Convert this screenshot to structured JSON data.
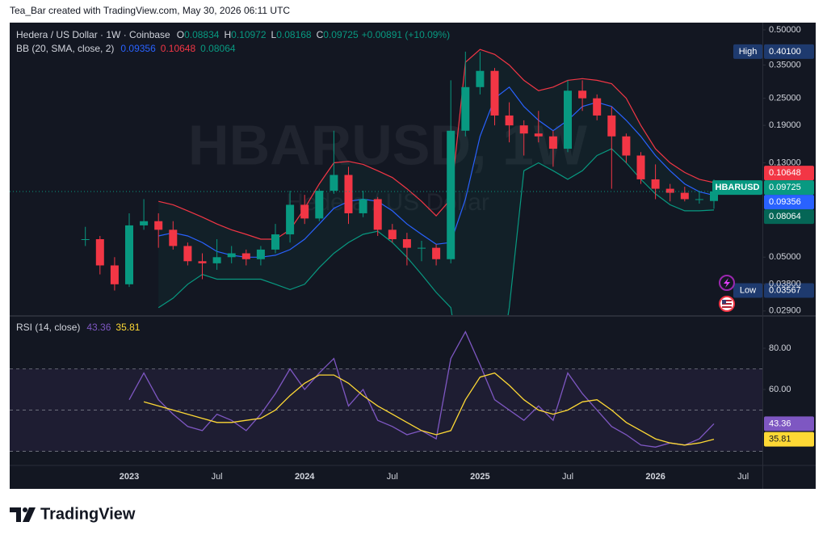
{
  "header": {
    "text": "Tea_Bar created with TradingView.com, May 30, 2026 06:11 UTC"
  },
  "footer": {
    "brand": "TradingView"
  },
  "chart_data": [
    {
      "type": "candlestick",
      "title": "Hedera / US Dollar · 1W · Coinbase",
      "watermark": "HBARUSD, 1W",
      "watermark_subtitle": "Hedera / US Dollar",
      "symbol": "HBARUSD",
      "ohlc_letters": [
        "O",
        "H",
        "L",
        "C"
      ],
      "change": "+0.00891 (+10.09%)",
      "up_color": "#089981",
      "down_color": "#f23645",
      "log_scale": true,
      "grid": false,
      "categories": [
        null,
        null,
        null,
        "2023",
        null,
        null,
        null,
        null,
        null,
        "Jul",
        null,
        null,
        null,
        null,
        null,
        "2024",
        null,
        null,
        null,
        null,
        null,
        "Jul",
        null,
        null,
        null,
        null,
        null,
        "2025",
        null,
        null,
        null,
        null,
        null,
        "Jul",
        null,
        null,
        null,
        null,
        null,
        "2026",
        null,
        null,
        null,
        null,
        null,
        "Jul"
      ],
      "open": [
        0.06,
        0.06,
        0.046,
        0.038,
        0.069,
        0.072,
        0.066,
        0.056,
        0.048,
        0.047,
        0.05,
        0.052,
        0.049,
        0.054,
        0.063,
        0.085,
        0.074,
        0.098,
        0.115,
        0.078,
        0.09,
        0.066,
        0.06,
        0.055,
        0.055,
        0.049,
        0.18,
        0.28,
        0.33,
        0.21,
        0.19,
        0.175,
        0.17,
        0.15,
        0.27,
        0.25,
        0.21,
        0.17,
        0.14,
        0.11,
        0.1,
        0.096,
        0.09,
        0.08834,
        null,
        null
      ],
      "high": [
        0.068,
        0.062,
        0.05,
        0.078,
        0.09,
        0.078,
        0.072,
        0.058,
        0.052,
        0.06,
        0.056,
        0.054,
        0.056,
        0.07,
        0.098,
        0.094,
        0.1,
        0.18,
        0.125,
        0.098,
        0.092,
        0.07,
        0.064,
        0.059,
        0.057,
        0.3,
        0.401,
        0.4,
        0.34,
        0.24,
        0.2,
        0.22,
        0.18,
        0.3,
        0.3,
        0.26,
        0.23,
        0.175,
        0.145,
        0.128,
        0.105,
        0.102,
        0.098,
        0.10972,
        null,
        null
      ],
      "low": [
        0.056,
        0.042,
        0.03567,
        0.037,
        0.066,
        0.055,
        0.054,
        0.046,
        0.04,
        0.044,
        0.047,
        0.046,
        0.046,
        0.052,
        0.058,
        0.07,
        0.072,
        0.095,
        0.07,
        0.075,
        0.062,
        0.058,
        0.046,
        0.048,
        0.046,
        0.047,
        0.17,
        0.26,
        0.19,
        0.16,
        0.14,
        0.16,
        0.125,
        0.145,
        0.22,
        0.2,
        0.1,
        0.13,
        0.105,
        0.09,
        0.088,
        0.088,
        0.086,
        0.08168,
        null,
        null
      ],
      "close": [
        0.06,
        0.046,
        0.038,
        0.069,
        0.072,
        0.066,
        0.056,
        0.048,
        0.047,
        0.05,
        0.052,
        0.049,
        0.054,
        0.063,
        0.085,
        0.074,
        0.098,
        0.115,
        0.078,
        0.09,
        0.066,
        0.06,
        0.055,
        0.055,
        0.049,
        0.18,
        0.28,
        0.33,
        0.21,
        0.19,
        0.175,
        0.17,
        0.15,
        0.27,
        0.25,
        0.21,
        0.17,
        0.14,
        0.11,
        0.1,
        0.096,
        0.09,
        0.09,
        0.09725,
        null,
        null
      ],
      "indicator": {
        "name": "BB (20, SMA, close, 2)",
        "fill": "rgba(8,153,129,0.07)",
        "series": [
          {
            "color": "#f23645",
            "values": [
              null,
              null,
              null,
              null,
              null,
              0.088,
              0.085,
              0.08,
              0.075,
              0.07,
              0.066,
              0.063,
              0.06,
              0.06,
              0.066,
              0.082,
              0.105,
              0.13,
              0.132,
              0.128,
              0.12,
              0.112,
              0.1,
              0.088,
              0.076,
              0.09,
              0.36,
              0.41,
              0.39,
              0.35,
              0.3,
              0.27,
              0.28,
              0.3,
              0.305,
              0.3,
              0.29,
              0.25,
              0.19,
              0.15,
              0.13,
              0.118,
              0.11,
              0.10648,
              null,
              null
            ]
          },
          {
            "color": "#2962ff",
            "values": [
              null,
              null,
              null,
              null,
              null,
              0.062,
              0.064,
              0.062,
              0.058,
              0.053,
              0.051,
              0.05,
              0.05,
              0.051,
              0.054,
              0.06,
              0.07,
              0.082,
              0.088,
              0.09,
              0.088,
              0.08,
              0.07,
              0.063,
              0.057,
              0.058,
              0.09,
              0.17,
              0.25,
              0.28,
              0.23,
              0.2,
              0.18,
              0.2,
              0.23,
              0.24,
              0.23,
              0.2,
              0.17,
              0.14,
              0.12,
              0.105,
              0.097,
              0.09356,
              null,
              null
            ]
          },
          {
            "color": "#089981",
            "values": [
              null,
              null,
              null,
              null,
              null,
              0.03,
              0.033,
              0.038,
              0.042,
              0.04,
              0.04,
              0.04,
              0.04,
              0.038,
              0.036,
              0.038,
              0.045,
              0.052,
              0.058,
              0.063,
              0.065,
              0.058,
              0.05,
              0.042,
              0.035,
              0.03,
              0.012,
              0.01,
              0.012,
              0.03,
              0.12,
              0.13,
              0.12,
              0.11,
              0.12,
              0.14,
              0.15,
              0.13,
              0.11,
              0.095,
              0.085,
              0.08,
              0.08,
              0.08064,
              null,
              null
            ]
          }
        ]
      },
      "high_marker": {
        "name": "High",
        "value": 0.401,
        "label": "0.40100"
      },
      "low_marker": {
        "name": "Low",
        "value": 0.03567,
        "label": "0.03567"
      },
      "ylim": [
        0.0278,
        0.538
      ],
      "yticks": [
        {
          "value": 0.5,
          "label": "0.50000"
        },
        {
          "value": 0.35,
          "label": "0.35000"
        },
        {
          "value": 0.25,
          "label": "0.25000"
        },
        {
          "value": 0.19,
          "label": "0.19000"
        },
        {
          "value": 0.13,
          "label": "0.13000"
        },
        {
          "value": 0.05,
          "label": "0.05000"
        },
        {
          "value": 0.038,
          "label": "0.03800"
        },
        {
          "value": 0.029,
          "label": "0.02900"
        }
      ]
    },
    {
      "type": "line",
      "title": "RSI (14, close)",
      "levels": [
        70,
        50,
        30
      ],
      "series": [
        {
          "color": "#7e57c2",
          "values": [
            null,
            null,
            null,
            55,
            68,
            55,
            48,
            42,
            40,
            48,
            45,
            40,
            48,
            58,
            70,
            60,
            68,
            75,
            52,
            60,
            45,
            42,
            38,
            40,
            36,
            75,
            88,
            72,
            55,
            50,
            45,
            52,
            45,
            68,
            58,
            50,
            42,
            38,
            33,
            32,
            34,
            33,
            36,
            43.36,
            null,
            null
          ]
        },
        {
          "color": "#fdd835",
          "values": [
            null,
            null,
            null,
            null,
            54,
            52,
            50,
            48,
            46,
            44,
            44,
            45,
            46,
            50,
            57,
            63,
            67,
            67,
            63,
            57,
            52,
            48,
            44,
            40,
            38,
            40,
            55,
            66,
            68,
            62,
            55,
            50,
            48,
            50,
            54,
            55,
            50,
            44,
            40,
            36,
            34,
            33,
            34,
            35.81,
            null,
            null
          ]
        }
      ],
      "ylim": [
        23.5,
        95.3
      ],
      "yticks": [
        {
          "value": 80,
          "label": "80.00"
        },
        {
          "value": 60,
          "label": "60.00"
        }
      ]
    }
  ]
}
